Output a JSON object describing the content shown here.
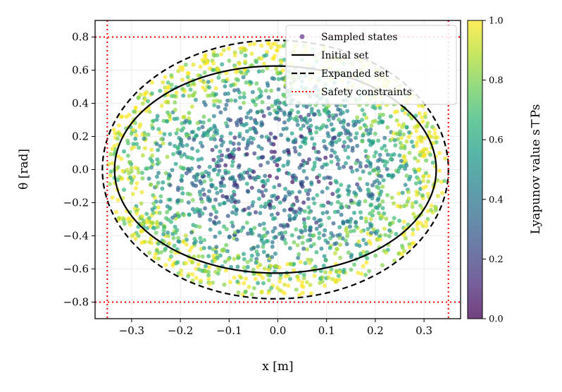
{
  "chart_data": {
    "type": "scatter",
    "xlabel": "x  [m]",
    "ylabel": "θ  [rad]",
    "xlim": [
      -0.375,
      0.375
    ],
    "ylim": [
      -0.9,
      0.9
    ],
    "x_ticks": [
      -0.3,
      -0.2,
      -0.1,
      0.0,
      0.1,
      0.2,
      0.3
    ],
    "x_tick_labels": [
      "−0.3",
      "−0.2",
      "−0.1",
      "0.0",
      "0.1",
      "0.2",
      "0.3"
    ],
    "y_ticks": [
      0.8,
      0.6,
      0.4,
      0.2,
      0.0,
      -0.2,
      -0.4,
      -0.6,
      -0.8
    ],
    "y_tick_labels": [
      "0.8",
      "0.6",
      "0.4",
      "0.2",
      "0.0",
      "−0.2",
      "−0.4",
      "−0.6",
      "−0.8"
    ],
    "grid": true,
    "legend_position": "top-right",
    "legend": [
      {
        "label": "Sampled states",
        "kind": "marker",
        "color": "#8e6bab"
      },
      {
        "label": "Initial set",
        "kind": "solid",
        "color": "#000000"
      },
      {
        "label": "Expanded set",
        "kind": "dashed",
        "color": "#000000"
      },
      {
        "label": "Safety constraints",
        "kind": "dotted",
        "color": "#ff0000"
      }
    ],
    "initial_set": {
      "center": [
        -0.005,
        0.0
      ],
      "semi_axes": [
        0.33,
        0.625
      ]
    },
    "expanded_set": {
      "center": [
        -0.005,
        0.0
      ],
      "semi_axes": [
        0.355,
        0.78
      ]
    },
    "safety_constraints": {
      "x": [
        -0.35,
        0.35
      ],
      "theta": [
        -0.8,
        0.8
      ],
      "color": "#ff0000"
    },
    "sampled_states": {
      "count": 2200,
      "region": "inside expanded set",
      "alpha": 0.7
    },
    "colorbar": {
      "label": "Lyapunov value s⊤Ps",
      "range": [
        0.0,
        1.0
      ],
      "ticks": [
        0.0,
        0.2,
        0.4,
        0.6,
        0.8,
        1.0
      ],
      "tick_labels": [
        "0.0",
        "0.2",
        "0.4",
        "0.6",
        "0.8",
        "1.0"
      ],
      "colormap": "viridis",
      "colormap_stops": [
        "#440154",
        "#482878",
        "#3e4989",
        "#31688e",
        "#26828e",
        "#1f9e89",
        "#35b779",
        "#6ece58",
        "#b5de2b",
        "#fde725"
      ]
    }
  }
}
